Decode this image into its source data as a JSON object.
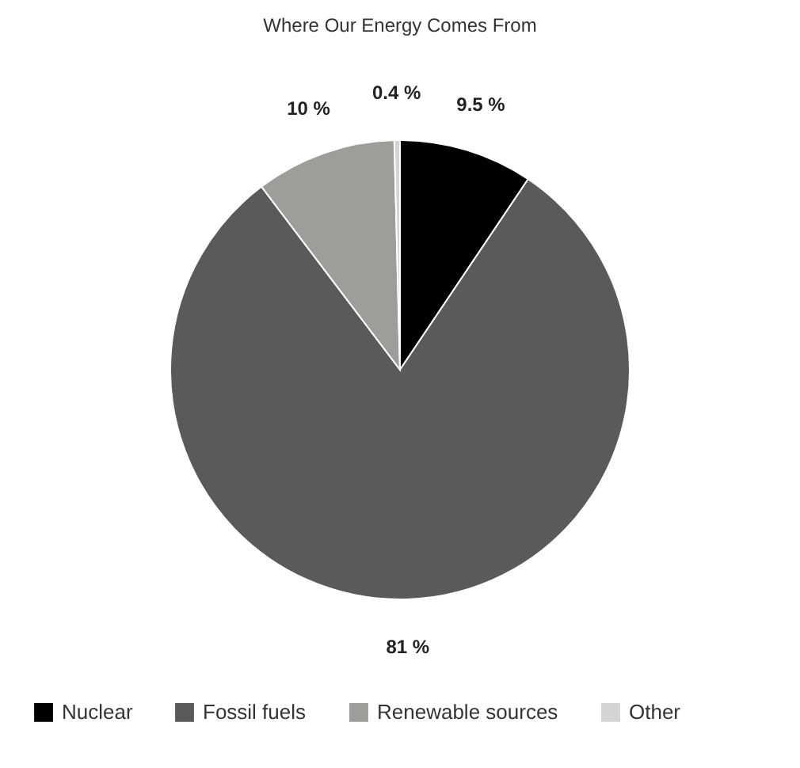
{
  "chart_data": {
    "type": "pie",
    "title": "Where Our Energy Comes From",
    "categories": [
      "Nuclear",
      "Fossil fuels",
      "Renewable sources",
      "Other"
    ],
    "values": [
      9.5,
      81,
      10,
      0.4
    ],
    "colors": [
      "#000000",
      "#5a5a5a",
      "#9d9d99",
      "#d4d4d4"
    ],
    "value_labels": [
      "9.5 %",
      "81 %",
      "10 %",
      "0.4 %"
    ],
    "legend": "bottom"
  }
}
